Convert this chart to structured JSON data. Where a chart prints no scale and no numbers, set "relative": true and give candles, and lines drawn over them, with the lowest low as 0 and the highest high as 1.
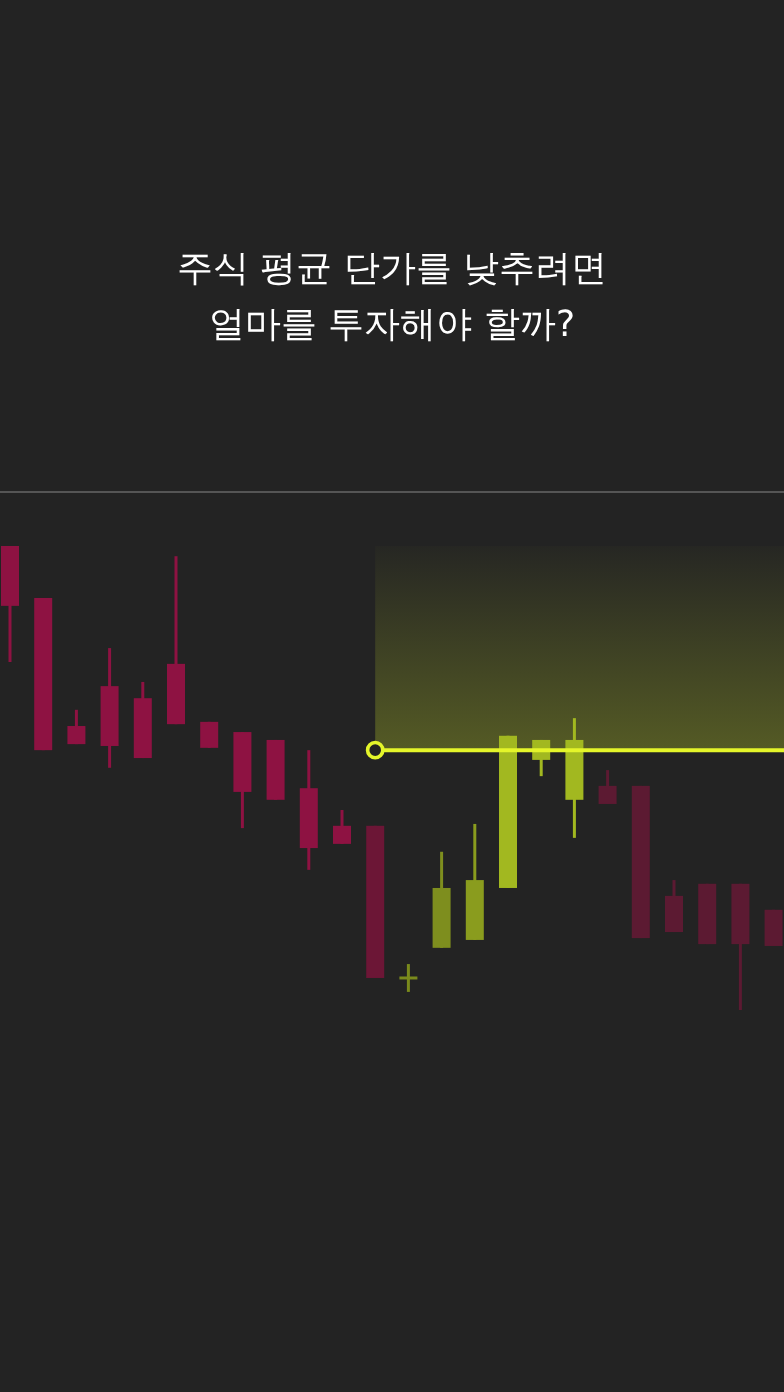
{
  "chart_data": {
    "type": "candlestick",
    "title": "주식 평균 단가를 낮추려면\n얼마를 투자해야 할까?",
    "relative": true,
    "categories": [
      null,
      null,
      null,
      null,
      null,
      null,
      null,
      null,
      null,
      null,
      null,
      null,
      null,
      null,
      null,
      null,
      null,
      null,
      null,
      null,
      null,
      null,
      null,
      null
    ],
    "ohlc": [
      [
        1.0,
        1.0,
        0.75,
        0.871
      ],
      [
        0.888,
        0.888,
        0.56,
        0.56
      ],
      [
        0.612,
        0.647,
        0.573,
        0.573
      ],
      [
        0.698,
        0.78,
        0.522,
        0.569
      ],
      [
        0.672,
        0.707,
        0.543,
        0.543
      ],
      [
        0.746,
        0.978,
        0.616,
        0.616
      ],
      [
        0.621,
        0.621,
        0.565,
        0.565
      ],
      [
        0.599,
        0.599,
        0.392,
        0.47
      ],
      [
        0.582,
        0.582,
        0.453,
        0.453
      ],
      [
        0.478,
        0.56,
        0.302,
        0.349
      ],
      [
        0.397,
        0.431,
        0.358,
        0.358
      ],
      [
        0.397,
        0.397,
        0.069,
        0.069
      ],
      [
        0.069,
        0.099,
        0.039,
        0.069
      ],
      [
        0.134,
        0.341,
        0.134,
        0.263
      ],
      [
        0.151,
        0.401,
        0.151,
        0.28
      ],
      [
        0.263,
        0.591,
        0.263,
        0.591
      ],
      [
        0.539,
        0.582,
        0.504,
        0.582
      ],
      [
        0.453,
        0.629,
        0.371,
        0.582
      ],
      [
        0.483,
        0.517,
        0.444,
        0.444
      ],
      [
        0.483,
        0.483,
        0.155,
        0.155
      ],
      [
        0.246,
        0.28,
        0.168,
        0.168
      ],
      [
        0.272,
        0.272,
        0.142,
        0.142
      ],
      [
        0.272,
        0.272,
        0.0,
        0.142
      ],
      [
        0.216,
        0.216,
        0.138,
        0.138
      ]
    ],
    "colors": [
      "#8e1242",
      "#8e1242",
      "#8e1242",
      "#8e1242",
      "#8e1242",
      "#8e1242",
      "#8e1242",
      "#8e1242",
      "#8e1242",
      "#8e1242",
      "#8e1242",
      "#6c1636",
      "#7a8a1c",
      "#7e8e1e",
      "#8a9c1e",
      "#a2b820",
      "#a2b820",
      "#a2b820",
      "#5c1a32",
      "#5c1a32",
      "#5c1a32",
      "#5c1a32",
      "#5c1a32",
      "#5c1a32"
    ],
    "ref_lines": [
      {
        "axis": "y",
        "value": 0.56,
        "color": "#e4f52a"
      }
    ],
    "bands": [
      {
        "axis": "y",
        "from": 0.56,
        "to": 1.0,
        "color": "#c8dc28"
      }
    ]
  }
}
